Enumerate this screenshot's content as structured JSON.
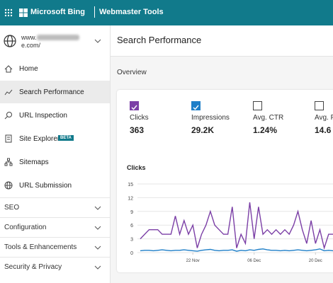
{
  "header": {
    "brand": "Microsoft Bing",
    "product": "Webmaster Tools"
  },
  "site": {
    "line1": "www.",
    "line2": "e.com/"
  },
  "nav": {
    "items": [
      "Home",
      "Search Performance",
      "URL Inspection",
      "Site Explorer",
      "Sitemaps",
      "URL Submission"
    ],
    "badge": "BETA",
    "selected": 1,
    "groups": [
      "SEO",
      "Configuration",
      "Tools & Enhancements",
      "Security & Privacy"
    ]
  },
  "page": {
    "title": "Search Performance",
    "section": "Overview"
  },
  "metrics": [
    {
      "label": "Clicks",
      "value": "363",
      "checked": true,
      "color": "#7b3fa6"
    },
    {
      "label": "Impressions",
      "value": "29.2K",
      "checked": true,
      "color": "#1f7fc8"
    },
    {
      "label": "Avg. CTR",
      "value": "1.24%",
      "checked": false
    },
    {
      "label": "Avg. Po",
      "value": "14.6",
      "checked": false
    }
  ],
  "chart": {
    "type": "line",
    "title": "Clicks",
    "ylim": [
      0,
      15
    ],
    "yticks": [
      0,
      3,
      6,
      9,
      12,
      15
    ],
    "xlim": [
      0,
      44
    ],
    "xticks": [
      {
        "value": 12,
        "label": "22 Nov"
      },
      {
        "value": 26,
        "label": "06 Dec"
      },
      {
        "value": 40,
        "label": "20 Dec"
      }
    ],
    "series": [
      {
        "color": "#7b3fa6",
        "values": [
          3,
          4,
          5,
          5,
          5,
          4,
          4,
          4,
          8,
          4,
          7,
          4,
          6,
          1,
          4,
          6,
          9,
          6,
          5,
          4,
          4,
          10,
          1,
          4,
          2,
          11,
          3,
          10,
          4,
          5,
          4,
          5,
          4,
          5,
          4,
          6,
          9,
          5,
          2,
          7,
          2,
          5,
          1,
          4,
          4
        ]
      },
      {
        "color": "#1f7fc8",
        "values": [
          0.4,
          0.5,
          0.5,
          0.4,
          0.5,
          0.6,
          0.5,
          0.4,
          0.5,
          0.5,
          0.6,
          0.5,
          0.4,
          0.3,
          0.5,
          0.6,
          0.7,
          0.5,
          0.4,
          0.5,
          0.5,
          0.6,
          0.3,
          0.5,
          0.4,
          0.6,
          0.5,
          0.7,
          0.8,
          0.6,
          0.5,
          0.5,
          0.4,
          0.5,
          0.4,
          0.5,
          0.6,
          0.5,
          0.4,
          0.5,
          0.6,
          0.8,
          0.4,
          0.5,
          0.4
        ]
      }
    ]
  }
}
